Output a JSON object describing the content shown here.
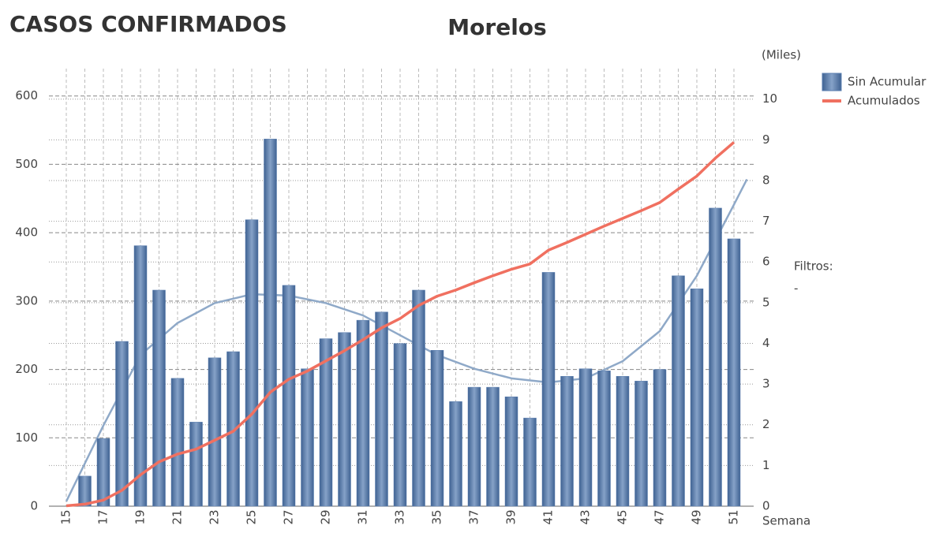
{
  "chart_data": {
    "type": "bar_line",
    "heading": "CASOS CONFIRMADOS",
    "title": "Morelos",
    "y2_label": "(Miles)",
    "x_label": "Semana",
    "filters_label": "Filtros:",
    "filters_value": "-",
    "categories": [
      15,
      null,
      17,
      null,
      19,
      null,
      21,
      null,
      23,
      null,
      25,
      null,
      27,
      null,
      29,
      null,
      31,
      null,
      33,
      null,
      35,
      null,
      37,
      null,
      39,
      null,
      41,
      null,
      43,
      null,
      45,
      null,
      47,
      null,
      49,
      null,
      51
    ],
    "series": [
      {
        "name": "Sin Acumular",
        "color": "#5b7fb0",
        "type": "bar",
        "values": [
          null,
          44,
          99,
          241,
          381,
          316,
          187,
          123,
          217,
          226,
          419,
          537,
          323,
          201,
          245,
          254,
          272,
          284,
          238,
          316,
          228,
          153,
          174,
          174,
          160,
          129,
          342,
          190,
          201,
          198,
          190,
          183,
          200,
          337,
          318,
          436,
          391
        ]
      },
      {
        "name": "Acumulados",
        "color": "#f07060",
        "type": "line",
        "axis": "y2",
        "values": [
          0.01,
          0.05,
          0.15,
          0.39,
          0.77,
          1.09,
          1.28,
          1.4,
          1.62,
          1.84,
          2.26,
          2.8,
          3.12,
          3.32,
          3.57,
          3.82,
          4.09,
          4.38,
          4.61,
          4.93,
          5.16,
          5.31,
          5.49,
          5.66,
          5.82,
          5.95,
          6.29,
          6.48,
          6.68,
          6.88,
          7.07,
          7.26,
          7.46,
          7.79,
          8.11,
          8.55,
          8.94
        ]
      }
    ],
    "trend": {
      "color": "#8fa9c8",
      "x": [
        15,
        17,
        19,
        21,
        23,
        25,
        27,
        29,
        31,
        33,
        35,
        37,
        39,
        41,
        43,
        45,
        47,
        49,
        51,
        51.7
      ],
      "values": [
        7,
        118,
        221,
        268,
        297,
        310,
        308,
        297,
        279,
        250,
        221,
        201,
        187,
        181,
        187,
        212,
        256,
        337,
        441,
        478
      ]
    },
    "ylim": [
      0,
      640
    ],
    "yticks": [
      0,
      100,
      200,
      300,
      400,
      500,
      600
    ],
    "y2lim": [
      0,
      10.75
    ],
    "y2ticks": [
      0,
      1,
      2,
      3,
      4,
      5,
      6,
      7,
      8,
      9,
      10
    ],
    "grid": true,
    "legend": "top-right"
  }
}
